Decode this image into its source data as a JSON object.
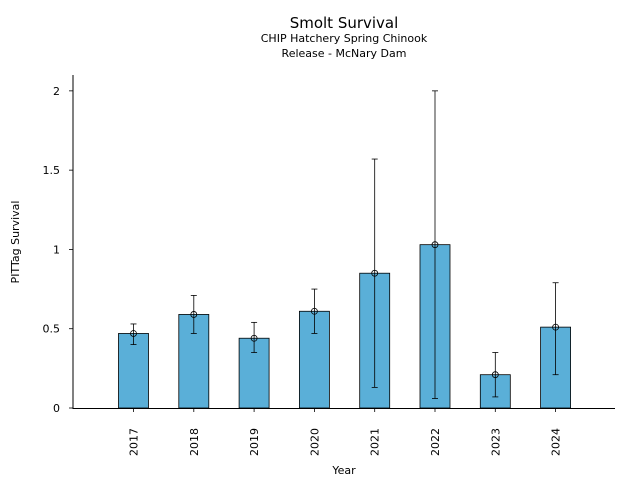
{
  "chart_data": {
    "type": "bar",
    "title": "Smolt Survival",
    "subtitle_lines": [
      "CHIP Hatchery Spring Chinook",
      "Release - McNary Dam"
    ],
    "xlabel": "Year",
    "ylabel": "PITTag Survival",
    "categories": [
      "2017",
      "2018",
      "2019",
      "2020",
      "2021",
      "2022",
      "2023",
      "2024"
    ],
    "values": [
      0.47,
      0.59,
      0.44,
      0.61,
      0.85,
      1.03,
      0.21,
      0.51
    ],
    "error_low": [
      0.4,
      0.47,
      0.35,
      0.47,
      0.13,
      0.06,
      0.07,
      0.21
    ],
    "error_high": [
      0.53,
      0.71,
      0.54,
      0.75,
      1.57,
      2.0,
      0.35,
      0.79
    ],
    "ylim": [
      0,
      2.1
    ],
    "yticks": [
      0,
      0.5,
      1,
      1.5,
      2
    ],
    "ytick_labels": [
      "0",
      "0.5",
      "1",
      "1.5",
      "2"
    ],
    "grid": false,
    "bar_color": "#5aafd8",
    "edge_color": "#000000"
  }
}
